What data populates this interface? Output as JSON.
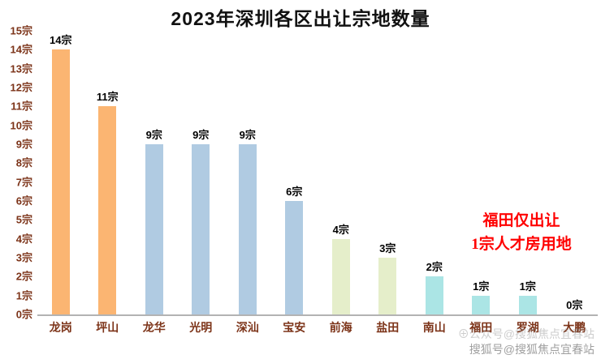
{
  "title": "2023年深圳各区出让宗地数量",
  "chart_data": {
    "type": "bar",
    "title": "2023年深圳各区出让宗地数量",
    "categories": [
      "龙岗",
      "坪山",
      "龙华",
      "光明",
      "深汕",
      "宝安",
      "前海",
      "盐田",
      "南山",
      "福田",
      "罗湖",
      "大鹏"
    ],
    "values": [
      14,
      11,
      9,
      9,
      9,
      6,
      4,
      3,
      2,
      1,
      1,
      0
    ],
    "value_labels": [
      "14宗",
      "11宗",
      "9宗",
      "9宗",
      "9宗",
      "6宗",
      "4宗",
      "3宗",
      "2宗",
      "1宗",
      "1宗",
      "0宗"
    ],
    "y_ticks": [
      "15宗",
      "14宗",
      "13宗",
      "12宗",
      "11宗",
      "10宗",
      "9宗",
      "8宗",
      "7宗",
      "6宗",
      "5宗",
      "4宗",
      "3宗",
      "2宗",
      "1宗",
      "0宗"
    ],
    "ylim": [
      0,
      15
    ],
    "xlabel": "",
    "ylabel": "",
    "grid": false,
    "legend": "none",
    "bar_colors": [
      "#fbb572",
      "#fbb572",
      "#b0cbe2",
      "#b0cbe2",
      "#b0cbe2",
      "#b0cbe2",
      "#e5eeca",
      "#e5eeca",
      "#abe5e5",
      "#abe5e5",
      "#abe5e5",
      "#abe5e5"
    ],
    "axis_label_color": "#7c3318",
    "annotation": {
      "line1": "福田仅出让",
      "line2": "1宗人才房用地",
      "color": "#ff0000"
    }
  },
  "watermark": {
    "line1": "⊕公众号@搜狐焦点宜春站",
    "line2": "搜狐号@搜狐焦点宜春站"
  }
}
